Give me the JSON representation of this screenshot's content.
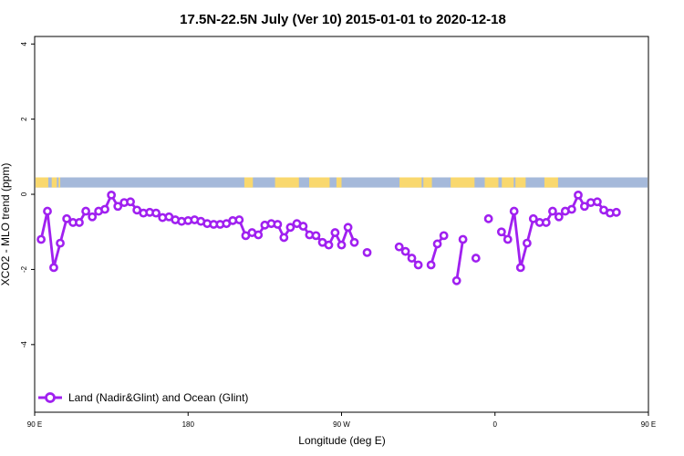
{
  "chart_data": {
    "type": "line",
    "title": "17.5N-22.5N July (Ver 10)   2015-01-01 to 2020-12-18",
    "xlabel": "Longitude (deg E)",
    "ylabel": "XCO2 - MLO trend (ppm)",
    "xlim": [
      90,
      450
    ],
    "ylim": [
      -5.8,
      4.2
    ],
    "x_ticks": [
      {
        "value": 90,
        "label": "90 E"
      },
      {
        "value": 180,
        "label": "180"
      },
      {
        "value": 270,
        "label": "90 W"
      },
      {
        "value": 360,
        "label": "0"
      },
      {
        "value": 450,
        "label": "90 E"
      },
      {
        "value": 540,
        "label": "180"
      }
    ],
    "y_ticks": [
      {
        "value": 4,
        "label": "4"
      },
      {
        "value": 2,
        "label": "2"
      },
      {
        "value": 0,
        "label": "0"
      },
      {
        "value": -2,
        "label": "-2"
      },
      {
        "value": -4,
        "label": "-4"
      }
    ],
    "series": [
      {
        "name": "Land (Nadir&Glint) and Ocean (Glint)",
        "color": "#a020f0",
        "segments": [
          [
            [
              93.8,
              -1.2
            ],
            [
              97.5,
              -0.45
            ],
            [
              101.2,
              -1.95
            ],
            [
              105,
              -1.3
            ],
            [
              108.8,
              -0.65
            ],
            [
              112.5,
              -0.75
            ],
            [
              116.2,
              -0.75
            ],
            [
              120,
              -0.45
            ],
            [
              123.8,
              -0.6
            ],
            [
              127.5,
              -0.45
            ],
            [
              131.2,
              -0.4
            ],
            [
              135,
              -0.02
            ],
            [
              138.8,
              -0.32
            ],
            [
              142.5,
              -0.22
            ],
            [
              146.2,
              -0.2
            ],
            [
              150,
              -0.42
            ],
            [
              153.8,
              -0.5
            ],
            [
              157.5,
              -0.48
            ],
            [
              161.2,
              -0.5
            ],
            [
              165,
              -0.62
            ],
            [
              168.8,
              -0.6
            ],
            [
              172.5,
              -0.68
            ],
            [
              176.2,
              -0.72
            ],
            [
              180,
              -0.7
            ],
            [
              183.8,
              -0.68
            ],
            [
              187.5,
              -0.72
            ],
            [
              191.2,
              -0.78
            ],
            [
              195,
              -0.8
            ],
            [
              198.8,
              -0.8
            ],
            [
              202.5,
              -0.78
            ],
            [
              206.2,
              -0.7
            ],
            [
              210,
              -0.68
            ],
            [
              213.8,
              -1.1
            ],
            [
              217.5,
              -1.02
            ],
            [
              221.2,
              -1.08
            ],
            [
              225,
              -0.82
            ],
            [
              228.8,
              -0.78
            ],
            [
              232.5,
              -0.8
            ],
            [
              236.2,
              -1.15
            ],
            [
              240,
              -0.88
            ],
            [
              243.8,
              -0.78
            ],
            [
              247.5,
              -0.85
            ],
            [
              251.2,
              -1.08
            ],
            [
              255,
              -1.1
            ],
            [
              258.8,
              -1.28
            ],
            [
              262.5,
              -1.35
            ],
            [
              266.2,
              -1.02
            ],
            [
              270,
              -1.35
            ],
            [
              273.8,
              -0.88
            ],
            [
              277.5,
              -1.28
            ]
          ],
          [
            [
              285,
              -1.55
            ]
          ],
          [
            [
              303.8,
              -1.4
            ],
            [
              307.5,
              -1.52
            ],
            [
              311.2,
              -1.7
            ],
            [
              315,
              -1.88
            ]
          ],
          [
            [
              322.5,
              -1.88
            ],
            [
              326.2,
              -1.32
            ],
            [
              330,
              -1.1
            ]
          ],
          [
            [
              337.5,
              -2.3
            ],
            [
              341.2,
              -1.2
            ]
          ],
          [
            [
              348.8,
              -1.7
            ]
          ],
          [
            [
              356.2,
              -0.65
            ]
          ],
          [
            [
              363.8,
              -1.0
            ],
            [
              367.5,
              -1.2
            ],
            [
              371.2,
              -0.45
            ],
            [
              375,
              -1.95
            ],
            [
              378.8,
              -1.3
            ],
            [
              382.5,
              -0.65
            ],
            [
              386.2,
              -0.75
            ],
            [
              390,
              -0.75
            ],
            [
              393.8,
              -0.45
            ],
            [
              397.5,
              -0.6
            ],
            [
              401.2,
              -0.45
            ],
            [
              405,
              -0.4
            ],
            [
              408.8,
              -0.02
            ],
            [
              412.5,
              -0.32
            ],
            [
              416.2,
              -0.22
            ],
            [
              420,
              -0.2
            ],
            [
              423.8,
              -0.42
            ],
            [
              427.5,
              -0.5
            ],
            [
              431.2,
              -0.48
            ]
          ]
        ]
      }
    ],
    "coastline_strip": {
      "ocean_color": "#a5b9da",
      "land_color": "#f9d86e",
      "y_range": [
        0.18,
        0.45
      ],
      "land_lon_ranges": [
        [
          90,
          98
        ],
        [
          100,
          103
        ],
        [
          104,
          105
        ],
        [
          213,
          218
        ],
        [
          231,
          245
        ],
        [
          251,
          263
        ],
        [
          267,
          270
        ],
        [
          304,
          317
        ],
        [
          318,
          323
        ],
        [
          334,
          348
        ],
        [
          354,
          362
        ],
        [
          364,
          371
        ],
        [
          372,
          378
        ],
        [
          389,
          397
        ]
      ]
    },
    "legend": {
      "position": "bottom-left",
      "label": "Land (Nadir&Glint) and Ocean (Glint)"
    }
  }
}
